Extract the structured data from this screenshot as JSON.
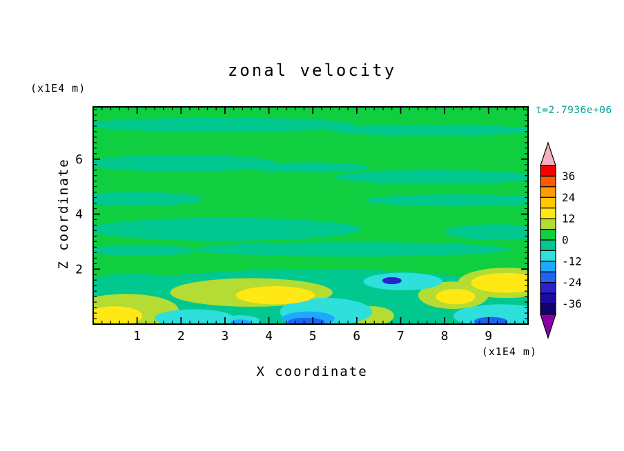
{
  "chart_data": {
    "type": "contour",
    "title": "zonal velocity",
    "timestamp": "t=2.7936e+06",
    "timestamp_color": "#00A096",
    "xlabel": "X coordinate",
    "ylabel": "Z coordinate",
    "x_axis_unit": "(x1E4 m)",
    "y_axis_unit": "(x1E4 m)",
    "xlim": [
      0,
      9.9
    ],
    "ylim": [
      0,
      7.9
    ],
    "x_major_ticks": [
      1,
      2,
      3,
      4,
      5,
      6,
      7,
      8,
      9
    ],
    "y_major_ticks": [
      2,
      4,
      6
    ],
    "minor_tick_step": 0.2,
    "grid": false,
    "colorbar": {
      "position": "right",
      "tick_labels": [
        "36",
        "24",
        "12",
        "0",
        "-12",
        "-24",
        "-36"
      ],
      "levels": [
        42,
        36,
        30,
        24,
        18,
        12,
        6,
        0,
        -6,
        -12,
        -18,
        -24,
        -30,
        -36,
        -42
      ],
      "colors_top_to_bottom": [
        "#F80000",
        "#FF5A00",
        "#FF9C00",
        "#FFC800",
        "#FFE814",
        "#B4DC32",
        "#0FCE3F",
        "#00C88E",
        "#2EDFDC",
        "#1EA8FF",
        "#1E64F0",
        "#2821D2",
        "#1E0AA0",
        "#14006E"
      ],
      "over_arrow_color": "#F2B2BE",
      "under_arrow_color": "#8C00AA"
    },
    "field": {
      "background_value_range": [
        0,
        6
      ],
      "background_color": "#0FCE3F",
      "blobs": [
        {
          "x": 2.9,
          "z": 7.25,
          "rx": 3.1,
          "rz": 0.26,
          "value": -3
        },
        {
          "x": 7.7,
          "z": 7.05,
          "rx": 2.3,
          "rz": 0.2,
          "value": -3
        },
        {
          "x": 2.0,
          "z": 5.85,
          "rx": 2.2,
          "rz": 0.3,
          "value": -3
        },
        {
          "x": 4.9,
          "z": 5.7,
          "rx": 1.4,
          "rz": 0.18,
          "value": -3
        },
        {
          "x": 7.8,
          "z": 5.35,
          "rx": 2.3,
          "rz": 0.26,
          "value": -3
        },
        {
          "x": 1.0,
          "z": 4.55,
          "rx": 1.5,
          "rz": 0.26,
          "value": -3
        },
        {
          "x": 8.3,
          "z": 4.5,
          "rx": 2.1,
          "rz": 0.22,
          "value": -3
        },
        {
          "x": 3.0,
          "z": 3.45,
          "rx": 3.1,
          "rz": 0.42,
          "value": -3
        },
        {
          "x": 9.2,
          "z": 3.35,
          "rx": 1.2,
          "rz": 0.28,
          "value": -3
        },
        {
          "x": 5.9,
          "z": 2.72,
          "rx": 3.6,
          "rz": 0.26,
          "value": -3
        },
        {
          "x": 1.1,
          "z": 2.68,
          "rx": 1.2,
          "rz": 0.2,
          "value": -3
        },
        {
          "x": 5.0,
          "z": 0.8,
          "rx": 5.4,
          "rz": 1.2,
          "value": -3
        },
        {
          "x": 0.9,
          "z": 1.1,
          "rx": 1.3,
          "rz": 0.75,
          "value": -3
        },
        {
          "x": 0.75,
          "z": 0.5,
          "rx": 1.2,
          "rz": 0.6,
          "value": 9
        },
        {
          "x": 3.6,
          "z": 1.15,
          "rx": 1.85,
          "rz": 0.52,
          "value": 9
        },
        {
          "x": 6.35,
          "z": 0.3,
          "rx": 0.5,
          "rz": 0.35,
          "value": 9
        },
        {
          "x": 8.2,
          "z": 1.05,
          "rx": 0.8,
          "rz": 0.5,
          "value": 9
        },
        {
          "x": 9.4,
          "z": 1.5,
          "rx": 1.1,
          "rz": 0.55,
          "value": 9
        },
        {
          "x": 2.3,
          "z": 0.22,
          "rx": 0.9,
          "rz": 0.32,
          "value": -9
        },
        {
          "x": 5.3,
          "z": 0.45,
          "rx": 1.05,
          "rz": 0.5,
          "value": -9
        },
        {
          "x": 7.05,
          "z": 1.55,
          "rx": 0.9,
          "rz": 0.32,
          "value": -9
        },
        {
          "x": 9.3,
          "z": 0.3,
          "rx": 1.1,
          "rz": 0.42,
          "value": -9
        },
        {
          "x": 3.35,
          "z": 0.12,
          "rx": 0.45,
          "rz": 0.2,
          "value": -9
        },
        {
          "x": 0.5,
          "z": 0.3,
          "rx": 0.62,
          "rz": 0.35,
          "value": 15
        },
        {
          "x": 4.15,
          "z": 1.05,
          "rx": 0.9,
          "rz": 0.33,
          "value": 15
        },
        {
          "x": 8.25,
          "z": 1.0,
          "rx": 0.45,
          "rz": 0.28,
          "value": 15
        },
        {
          "x": 9.4,
          "z": 1.5,
          "rx": 0.8,
          "rz": 0.36,
          "value": 15
        },
        {
          "x": 4.9,
          "z": 0.2,
          "rx": 0.6,
          "rz": 0.26,
          "value": -15
        },
        {
          "x": 3.35,
          "z": 0.07,
          "rx": 0.22,
          "rz": 0.1,
          "value": -15
        },
        {
          "x": 4.85,
          "z": 0.08,
          "rx": 0.42,
          "rz": 0.15,
          "value": -21
        },
        {
          "x": 9.05,
          "z": 0.1,
          "rx": 0.38,
          "rz": 0.16,
          "value": -21
        },
        {
          "x": 6.8,
          "z": 1.58,
          "rx": 0.22,
          "rz": 0.13,
          "value": -27
        }
      ]
    }
  }
}
